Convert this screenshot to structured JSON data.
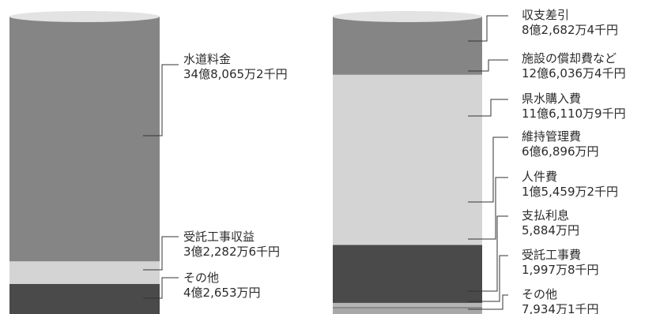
{
  "chart_data": [
    {
      "type": "stacked-column",
      "unit": "千円",
      "segments": [
        {
          "name": "水道料金",
          "value_label": "34億8,065万2千円",
          "value": 3480652,
          "color": "#858585"
        },
        {
          "name": "受託工事収益",
          "value_label": "3億2,282万6千円",
          "value": 322826,
          "color": "#d4d4d4"
        },
        {
          "name": "その他",
          "value_label": "4億2,653万円",
          "value": 426530,
          "color": "#4a4a4a"
        }
      ],
      "top_color": "#e3e3e3"
    },
    {
      "type": "stacked-column",
      "unit": "千円",
      "segments": [
        {
          "name": "収支差引",
          "value_label": "8億2,682万4千円",
          "value": 826824,
          "color": "#858585"
        },
        {
          "name": "施設の償却費など",
          "value_label": "12億6,036万4千円",
          "value": 1260364,
          "color": "#d4d4d4"
        },
        {
          "name": "県水購入費",
          "value_label": "11億6,110万9千円",
          "value": 1161109,
          "color": "#d4d4d4"
        },
        {
          "name": "維持管理費",
          "value_label": "6億6,896万円",
          "value": 668960,
          "color": "#4a4a4a"
        },
        {
          "name": "人件費",
          "value_label": "1億5,459万2千円",
          "value": 154592,
          "color": "#4a4a4a"
        },
        {
          "name": "支払利息",
          "value_label": "5,884万円",
          "value": 58840,
          "color": "#b5b5b5"
        },
        {
          "name": "受託工事費",
          "value_label": "1,997万8千円",
          "value": 19978,
          "color": "#858585"
        },
        {
          "name": "その他",
          "value_label": "7,934万1千円",
          "value": 79341,
          "color": "#a8a8a8"
        }
      ],
      "top_color": "#e3e3e3"
    }
  ]
}
